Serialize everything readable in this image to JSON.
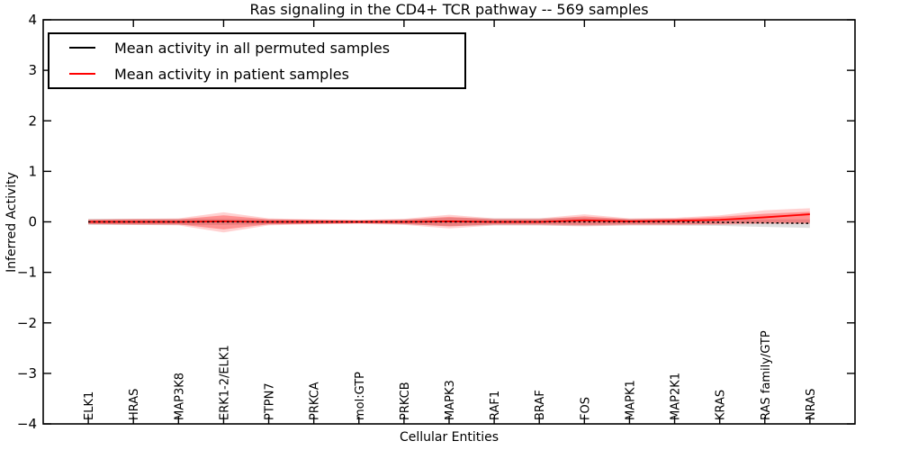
{
  "chart_data": {
    "type": "line",
    "title": "Ras signaling in the CD4+ TCR pathway -- 569 samples",
    "xlabel": "Cellular Entities",
    "ylabel": "Inferred Activity",
    "ylim": [
      -4,
      4
    ],
    "yticks": [
      4,
      3,
      2,
      1,
      0,
      -1,
      -2,
      -3,
      -4
    ],
    "ytick_labels": [
      "4",
      "3",
      "2",
      "1",
      "0",
      "−1",
      "−2",
      "−3",
      "−4"
    ],
    "grid": false,
    "legend_position": "upper left",
    "x_labels_rotation": 90,
    "categories": [
      "ELK1",
      "HRAS",
      "MAP3K8",
      "ERK1-2/ELK1",
      "PTPN7",
      "PRKCA",
      "mol:GTP",
      "PRKCB",
      "MAPK3",
      "RAF1",
      "BRAF",
      "FOS",
      "MAPK1",
      "MAP2K1",
      "KRAS",
      "RAS family/GTP",
      "NRAS"
    ],
    "series": [
      {
        "name": "Mean activity in all permuted samples",
        "color": "#000000",
        "linestyle": "dashed",
        "values": [
          0,
          0,
          0,
          0,
          0,
          0,
          0,
          0,
          0,
          0,
          0,
          0,
          0,
          0,
          -0.01,
          -0.02,
          -0.03
        ],
        "bands": [
          {
            "label": "permuted-confidence-band",
            "color": "#bdbdbd",
            "opacity": 0.5,
            "upper": [
              0.06,
              0.06,
              0.06,
              0.06,
              0.05,
              0.04,
              0.03,
              0.05,
              0.08,
              0.07,
              0.07,
              0.08,
              0.06,
              0.06,
              0.05,
              0.05,
              0.05
            ],
            "lower": [
              -0.06,
              -0.06,
              -0.06,
              -0.06,
              -0.05,
              -0.04,
              -0.03,
              -0.05,
              -0.08,
              -0.07,
              -0.07,
              -0.08,
              -0.07,
              -0.07,
              -0.08,
              -0.1,
              -0.12
            ]
          }
        ]
      },
      {
        "name": "Mean activity in patient samples",
        "color": "#ff0000",
        "linestyle": "solid",
        "values": [
          0,
          0,
          0,
          0.01,
          0,
          0,
          0,
          0,
          0.01,
          0,
          0,
          0.03,
          0.01,
          0.02,
          0.04,
          0.09,
          0.15
        ],
        "bands": [
          {
            "label": "patient-outer-band",
            "color": "#ff0000",
            "opacity": 0.18,
            "upper": [
              0.05,
              0.06,
              0.07,
              0.19,
              0.07,
              0.05,
              0.04,
              0.06,
              0.14,
              0.07,
              0.07,
              0.15,
              0.07,
              0.08,
              0.13,
              0.23,
              0.27
            ],
            "lower": [
              -0.05,
              -0.06,
              -0.07,
              -0.21,
              -0.07,
              -0.05,
              -0.04,
              -0.06,
              -0.13,
              -0.07,
              -0.07,
              -0.09,
              -0.07,
              -0.07,
              -0.06,
              -0.04,
              -0.04
            ]
          },
          {
            "label": "patient-inner-band",
            "color": "#ff0000",
            "opacity": 0.3,
            "upper": [
              0.04,
              0.05,
              0.05,
              0.13,
              0.05,
              0.04,
              0.03,
              0.04,
              0.1,
              0.05,
              0.05,
              0.11,
              0.05,
              0.06,
              0.1,
              0.16,
              0.2
            ],
            "lower": [
              -0.04,
              -0.05,
              -0.05,
              -0.15,
              -0.05,
              -0.04,
              -0.03,
              -0.04,
              -0.09,
              -0.05,
              -0.05,
              -0.06,
              -0.05,
              -0.05,
              -0.04,
              -0.02,
              -0.02
            ]
          }
        ]
      }
    ]
  },
  "legend": {
    "items": [
      {
        "label": "Mean activity in all permuted samples",
        "color": "#000000"
      },
      {
        "label": "Mean activity in patient samples",
        "color": "#ff0000"
      }
    ]
  }
}
